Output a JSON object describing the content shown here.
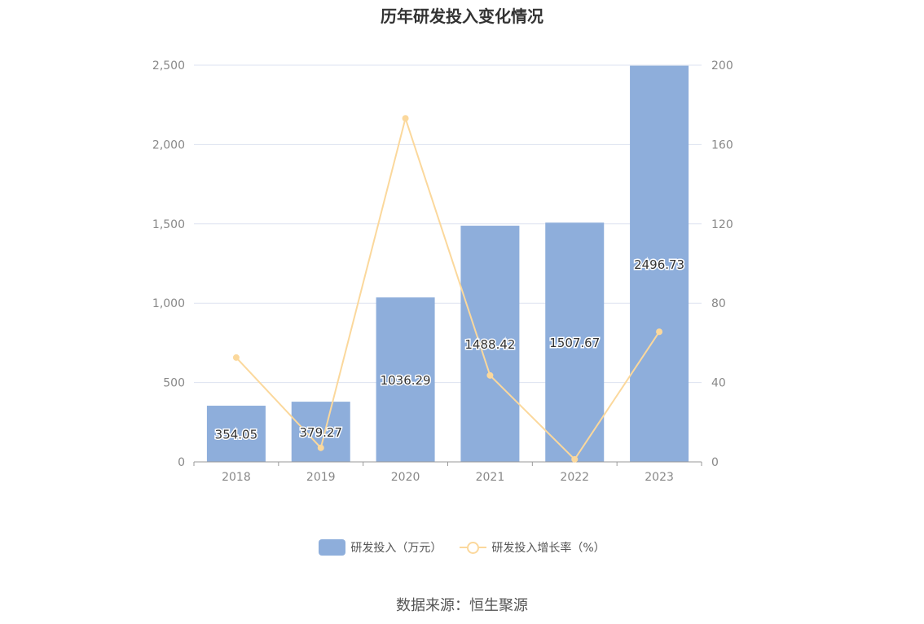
{
  "title": "历年研发投入变化情况",
  "source": "数据来源：恒生聚源",
  "colors": {
    "bar": "#8eaedb",
    "line": "#fbd89c",
    "grid": "#dde3f0",
    "axis": "#9a9a9a",
    "tick_text": "#888888"
  },
  "legend": {
    "bar_label": "研发投入（万元）",
    "line_label": "研发投入增长率（%）"
  },
  "chart_data": {
    "type": "bar",
    "title": "历年研发投入变化情况",
    "categories": [
      "2018",
      "2019",
      "2020",
      "2021",
      "2022",
      "2023"
    ],
    "series": [
      {
        "name": "研发投入（万元）",
        "type": "bar",
        "axis": "left",
        "values": [
          354.05,
          379.27,
          1036.29,
          1488.42,
          1507.67,
          2496.73
        ],
        "labels": [
          "354.05",
          "379.27",
          "1036.29",
          "1488.42",
          "1507.67",
          "2496.73"
        ]
      },
      {
        "name": "研发投入增长率（%）",
        "type": "line",
        "axis": "right",
        "values": [
          52.6,
          7.1,
          173.2,
          43.6,
          1.3,
          65.6
        ]
      }
    ],
    "y_left": {
      "ylim": [
        0,
        2500
      ],
      "ticks": [
        0,
        500,
        1000,
        1500,
        2000,
        2500
      ],
      "tick_labels": [
        "0",
        "500",
        "1,000",
        "1,500",
        "2,000",
        "2,500"
      ]
    },
    "y_right": {
      "ylim": [
        0,
        200
      ],
      "ticks": [
        0,
        40,
        80,
        120,
        160,
        200
      ],
      "tick_labels": [
        "0",
        "40",
        "80",
        "120",
        "160",
        "200"
      ]
    },
    "grid": true,
    "legend_position": "bottom-center"
  }
}
